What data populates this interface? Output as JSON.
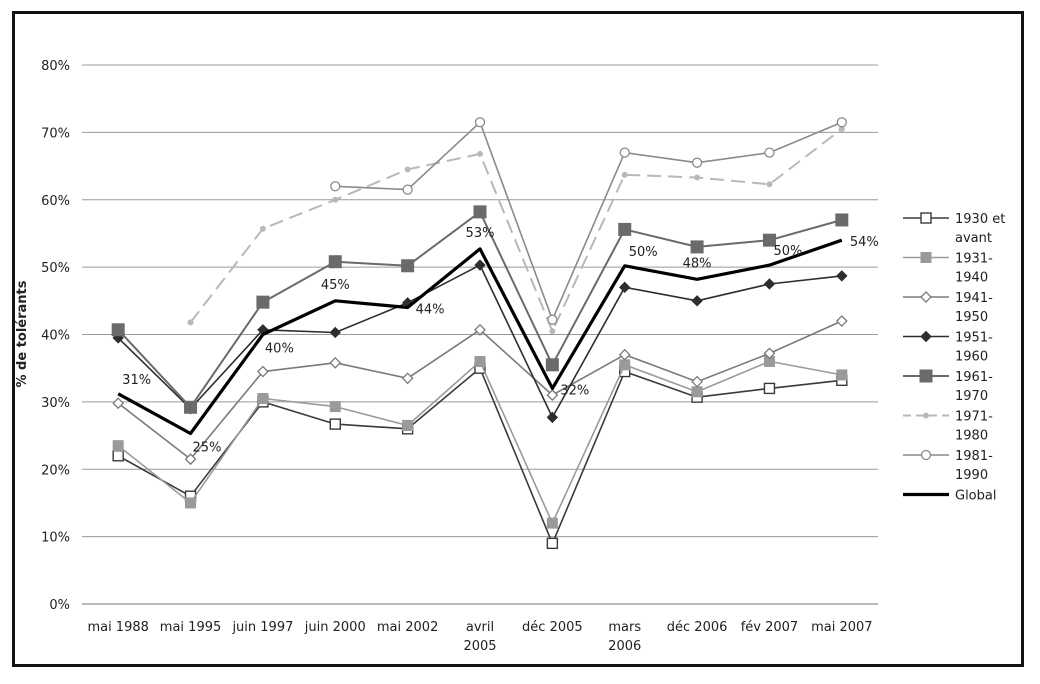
{
  "chart_data": {
    "type": "line",
    "title": "",
    "xlabel": "",
    "ylabel": "% de tolérants",
    "ylim": [
      0,
      80
    ],
    "yticks": [
      "0%",
      "10%",
      "20%",
      "30%",
      "40%",
      "50%",
      "60%",
      "70%",
      "80%"
    ],
    "grid": true,
    "legend_position": "right",
    "categories": [
      [
        "mai 1988"
      ],
      [
        "mai 1995"
      ],
      [
        "juin 1997"
      ],
      [
        "juin 2000"
      ],
      [
        "mai 2002"
      ],
      [
        "avril",
        "2005"
      ],
      [
        "déc 2005"
      ],
      [
        "mars",
        "2006"
      ],
      [
        "déc 2006"
      ],
      [
        "fév 2007"
      ],
      [
        "mai 2007"
      ]
    ],
    "series": [
      {
        "name": [
          "1930 et",
          "avant"
        ],
        "color": "#3a3a3a",
        "width": 1.6,
        "dash": "",
        "marker": "square-open",
        "values": [
          22,
          16,
          30,
          26.7,
          26,
          35,
          9,
          34.5,
          30.7,
          32,
          33.2
        ]
      },
      {
        "name": [
          "1931-",
          "1940"
        ],
        "color": "#9a9a9a",
        "width": 1.6,
        "dash": "",
        "marker": "square-filled",
        "values": [
          23.5,
          15,
          30.5,
          29.3,
          26.5,
          36,
          12,
          35.5,
          31.5,
          36,
          34
        ]
      },
      {
        "name": [
          "1941-",
          "1950"
        ],
        "color": "#7a7a7a",
        "width": 1.6,
        "dash": "",
        "marker": "diamond-open",
        "values": [
          29.8,
          21.5,
          34.5,
          35.8,
          33.5,
          40.7,
          31,
          37,
          33,
          37.2,
          42
        ]
      },
      {
        "name": [
          "1951-",
          "1960"
        ],
        "color": "#2e2e2e",
        "width": 1.6,
        "dash": "",
        "marker": "diamond-filled",
        "values": [
          39.5,
          29,
          40.7,
          40.3,
          44.7,
          50.3,
          27.7,
          47,
          45,
          47.5,
          48.7
        ]
      },
      {
        "name": [
          "1961-",
          "1970"
        ],
        "color": "#6a6a6a",
        "width": 2,
        "dash": "",
        "marker": "square-big",
        "values": [
          40.7,
          29.2,
          44.8,
          50.8,
          50.2,
          58.2,
          35.5,
          55.6,
          53,
          54,
          57
        ]
      },
      {
        "name": [
          "1971-",
          "1980"
        ],
        "color": "#b8b8b8",
        "width": 2,
        "dash": "14,7",
        "marker": "dot",
        "values": [
          null,
          41.8,
          55.7,
          60,
          64.5,
          66.8,
          40.5,
          63.7,
          63.3,
          62.3,
          70.5
        ]
      },
      {
        "name": [
          "1981-",
          "1990"
        ],
        "color": "#8a8a8a",
        "width": 1.6,
        "dash": "",
        "marker": "circle-open",
        "values": [
          null,
          null,
          null,
          62,
          61.5,
          71.5,
          42.2,
          67,
          65.5,
          67,
          71.5
        ]
      },
      {
        "name": [
          "Global"
        ],
        "color": "#000000",
        "width": 3.2,
        "dash": "",
        "marker": "none",
        "values": [
          31.2,
          25.3,
          40,
          45,
          44,
          52.7,
          32,
          50.2,
          48.2,
          50.3,
          54
        ]
      }
    ],
    "annotations": [
      {
        "text": "31%",
        "index": 0,
        "value": 31.2,
        "pos": "above-right"
      },
      {
        "text": "25%",
        "index": 1,
        "value": 25.3,
        "pos": "below-right"
      },
      {
        "text": "40%",
        "index": 2,
        "value": 40,
        "pos": "below-right"
      },
      {
        "text": "45%",
        "index": 3,
        "value": 45,
        "pos": "above"
      },
      {
        "text": "44%",
        "index": 4,
        "value": 44,
        "pos": "right"
      },
      {
        "text": "53%",
        "index": 5,
        "value": 52.7,
        "pos": "above"
      },
      {
        "text": "32%",
        "index": 6,
        "value": 32,
        "pos": "right"
      },
      {
        "text": "50%",
        "index": 7,
        "value": 50.2,
        "pos": "above-right"
      },
      {
        "text": "48%",
        "index": 8,
        "value": 48.2,
        "pos": "above"
      },
      {
        "text": "50%",
        "index": 9,
        "value": 50.3,
        "pos": "above-right"
      },
      {
        "text": "54%",
        "index": 10,
        "value": 54,
        "pos": "right"
      }
    ]
  }
}
